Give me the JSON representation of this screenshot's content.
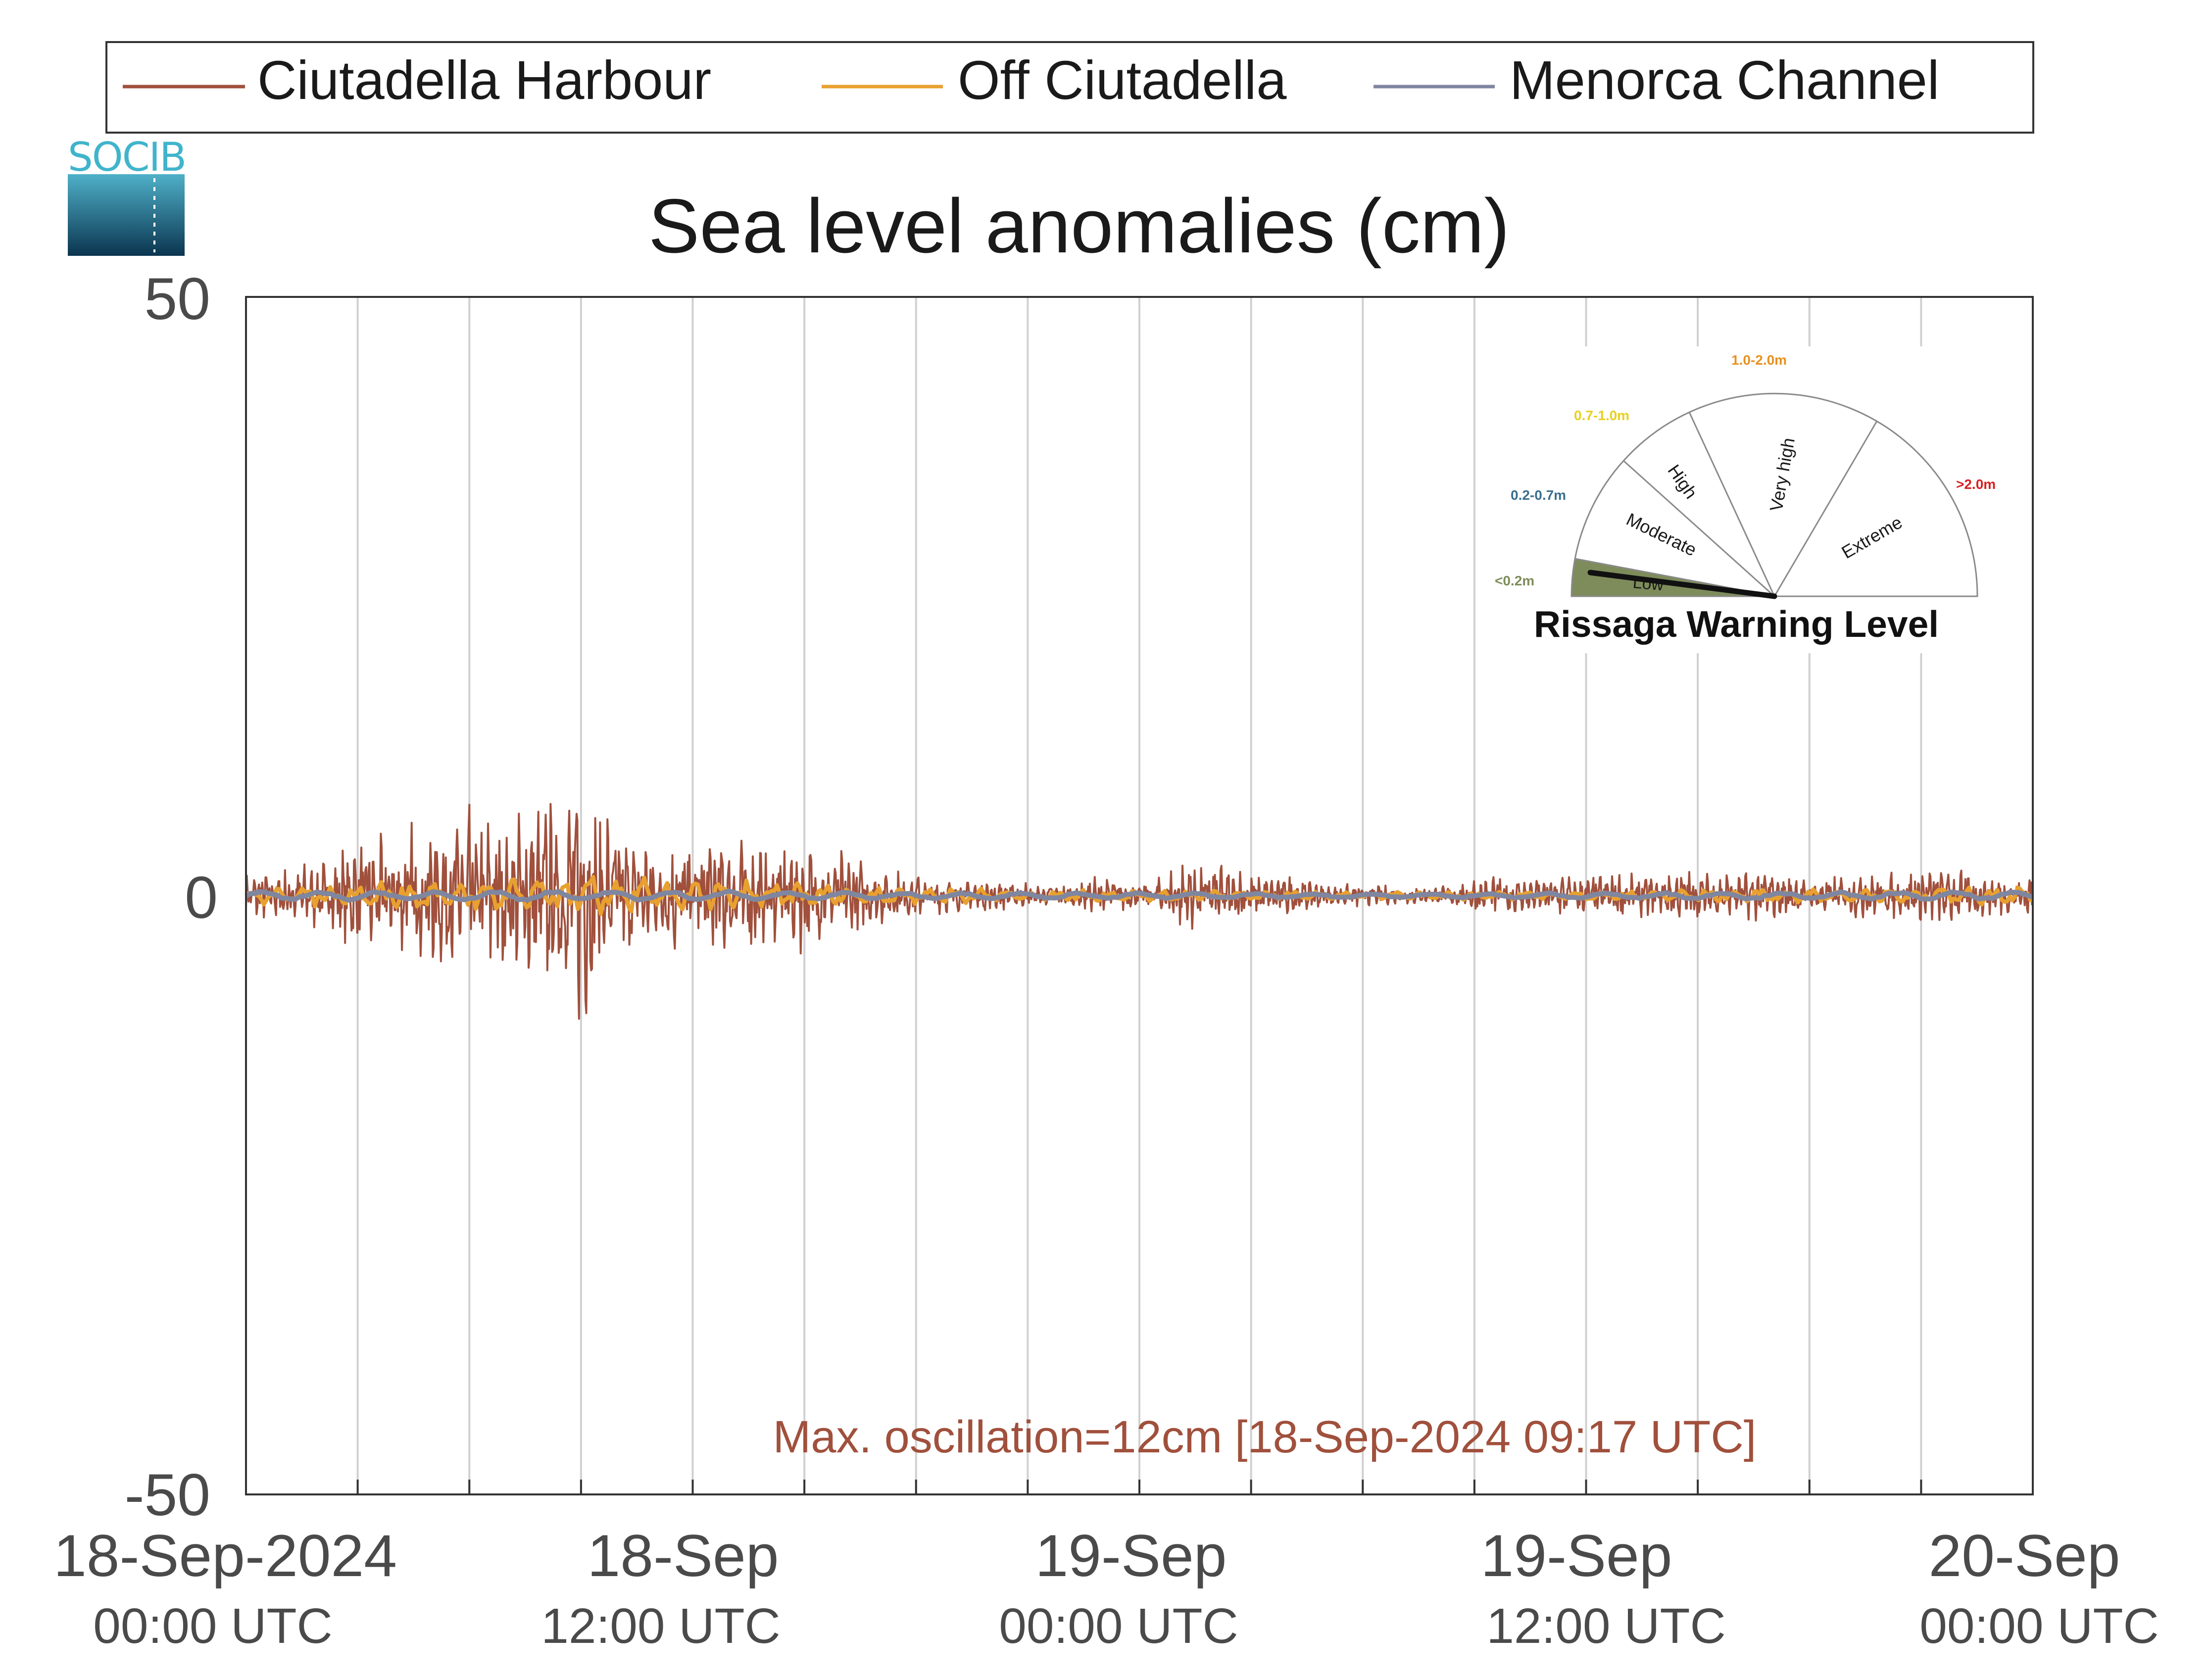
{
  "chart_data": {
    "type": "line",
    "title": "Sea level anomalies (cm)",
    "ylim": [
      -50,
      50
    ],
    "yticks": [
      "50",
      "0",
      "-50"
    ],
    "x_range_hours": [
      0,
      48
    ],
    "x_tick_labels": [
      {
        "hour": 0,
        "date": "18-Sep-2024",
        "time": "00:00 UTC"
      },
      {
        "hour": 12,
        "date": "18-Sep",
        "time": "12:00 UTC"
      },
      {
        "hour": 24,
        "date": "19-Sep",
        "time": "00:00 UTC"
      },
      {
        "hour": 36,
        "date": "19-Sep",
        "time": "12:00 UTC"
      },
      {
        "hour": 48,
        "date": "20-Sep",
        "time": "00:00 UTC"
      }
    ],
    "grid": "vertical lines every 3 hours",
    "legend_position": "top",
    "series": [
      {
        "name": "Ciutadella Harbour",
        "color": "#a0503c",
        "envelope": [
          [
            0,
            2
          ],
          [
            2,
            3
          ],
          [
            3,
            5
          ],
          [
            4,
            6
          ],
          [
            5,
            7
          ],
          [
            6,
            8
          ],
          [
            7,
            7
          ],
          [
            8,
            9
          ],
          [
            9,
            12
          ],
          [
            10,
            6
          ],
          [
            11,
            5
          ],
          [
            12,
            6
          ],
          [
            13,
            6
          ],
          [
            14,
            5
          ],
          [
            15,
            5
          ],
          [
            16,
            4
          ],
          [
            17,
            3
          ],
          [
            18,
            2
          ],
          [
            19,
            1.5
          ],
          [
            20,
            1.5
          ],
          [
            22,
            1
          ],
          [
            23,
            2
          ],
          [
            24,
            1
          ],
          [
            25,
            3
          ],
          [
            26,
            3
          ],
          [
            27,
            2
          ],
          [
            28,
            2
          ],
          [
            29,
            1
          ],
          [
            30,
            1
          ],
          [
            31,
            0.8
          ],
          [
            32,
            0.8
          ],
          [
            33,
            1.5
          ],
          [
            34,
            2
          ],
          [
            35,
            2
          ],
          [
            36,
            2
          ],
          [
            37,
            2
          ],
          [
            38,
            2
          ],
          [
            39,
            2.5
          ],
          [
            40,
            2
          ],
          [
            41,
            2.5
          ],
          [
            42,
            1.5
          ],
          [
            43,
            2
          ],
          [
            44,
            2
          ],
          [
            45,
            2.5
          ],
          [
            46,
            2.5
          ],
          [
            47,
            2
          ],
          [
            48,
            2
          ]
        ]
      },
      {
        "name": "Off Ciutadella",
        "color": "#e8a030",
        "envelope": [
          [
            0,
            0.8
          ],
          [
            3,
            1.2
          ],
          [
            6,
            1.5
          ],
          [
            9,
            2
          ],
          [
            12,
            1.5
          ],
          [
            15,
            1.2
          ],
          [
            18,
            0.8
          ],
          [
            21,
            0.5
          ],
          [
            24,
            0.6
          ],
          [
            27,
            0.5
          ],
          [
            30,
            0.3
          ],
          [
            33,
            0.4
          ],
          [
            36,
            0.5
          ],
          [
            39,
            0.6
          ],
          [
            42,
            0.7
          ],
          [
            45,
            0.8
          ],
          [
            48,
            0.8
          ]
        ]
      },
      {
        "name": "Menorca Channel",
        "color": "#7f86a0",
        "envelope": [
          [
            0,
            0.4
          ],
          [
            6,
            0.5
          ],
          [
            12,
            0.5
          ],
          [
            18,
            0.3
          ],
          [
            24,
            0.3
          ],
          [
            30,
            0.2
          ],
          [
            36,
            0.3
          ],
          [
            42,
            0.4
          ],
          [
            48,
            0.4
          ]
        ]
      }
    ],
    "annotation": "Max. oscillation=12cm [18-Sep-2024 09:17 UTC]"
  },
  "logo": {
    "text": "SOCIB"
  },
  "gauge": {
    "title": "Rissaga Warning Level",
    "needle_level": "Low",
    "levels": [
      {
        "name": "Low",
        "range": "<0.2m",
        "color": "#7d8c5a"
      },
      {
        "name": "Moderate",
        "range": "0.2-0.7m",
        "color": "#3a6e8e"
      },
      {
        "name": "High",
        "range": "0.7-1.0m",
        "color": "#e8d020"
      },
      {
        "name": "Very high",
        "range": "1.0-2.0m",
        "color": "#e89020"
      },
      {
        "name": "Extreme",
        "range": ">2.0m",
        "color": "#d82020"
      }
    ]
  }
}
